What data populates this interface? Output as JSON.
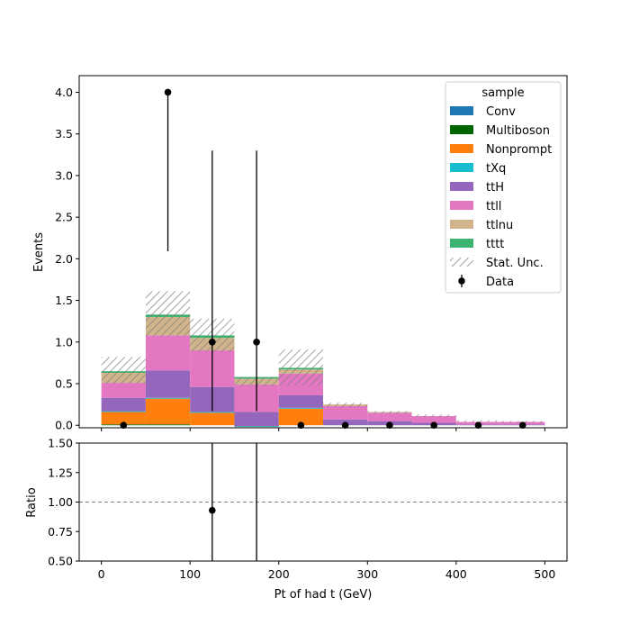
{
  "chart_data": [
    {
      "type": "bar",
      "stacked": true,
      "ylabel": "Events",
      "ylim": [
        -0.03,
        4.2
      ],
      "xlim": [
        -25,
        525
      ],
      "bin_edges": [
        0,
        50,
        100,
        150,
        200,
        250,
        300,
        350,
        400,
        450,
        500
      ],
      "yticks": [
        "0.0",
        "0.5",
        "1.0",
        "1.5",
        "2.0",
        "2.5",
        "3.0",
        "3.5",
        "4.0"
      ],
      "ytick_values": [
        0,
        0.5,
        1.0,
        1.5,
        2.0,
        2.5,
        3.0,
        3.5,
        4.0
      ],
      "legend": {
        "title": "sample",
        "placement": "top-right",
        "stat_label": "Stat. Unc.",
        "data_label": "Data"
      },
      "series": [
        {
          "name": "Conv",
          "color": "#1f77b4",
          "values": [
            0,
            0,
            0,
            0,
            0,
            0,
            0,
            0,
            0,
            0
          ]
        },
        {
          "name": "Multiboson",
          "color": "#006400",
          "values": [
            0.01,
            0.01,
            0,
            0,
            0,
            0,
            0,
            0,
            0,
            0
          ]
        },
        {
          "name": "Nonprompt",
          "color": "#ff7f0e",
          "values": [
            0.15,
            0.31,
            0.15,
            -0.02,
            0.2,
            0,
            0,
            0,
            0,
            0
          ]
        },
        {
          "name": "tXq",
          "color": "#17becf",
          "values": [
            0.01,
            0.01,
            0.01,
            0.01,
            0.01,
            0,
            0,
            0,
            0,
            0
          ]
        },
        {
          "name": "ttH",
          "color": "#9467bd",
          "values": [
            0.16,
            0.33,
            0.3,
            0.17,
            0.15,
            0.07,
            0.05,
            0.03,
            0.01,
            0.01
          ]
        },
        {
          "name": "ttll",
          "color": "#e377c2",
          "values": [
            0.18,
            0.42,
            0.44,
            0.33,
            0.26,
            0.16,
            0.1,
            0.08,
            0.03,
            0.03
          ]
        },
        {
          "name": "ttlnu",
          "color": "#d2b48c",
          "values": [
            0.12,
            0.22,
            0.15,
            0.07,
            0.05,
            0.02,
            0.01,
            0,
            0,
            0
          ]
        },
        {
          "name": "tttt",
          "color": "#3cb371",
          "values": [
            0.02,
            0.03,
            0.03,
            0.02,
            0.02,
            0,
            0,
            0,
            0,
            0
          ]
        }
      ],
      "stat_unc": {
        "color": "#7f7f7f",
        "low": [
          0.5,
          1.07,
          0.88,
          0.47,
          0.48,
          0.22,
          0.14,
          0.1,
          0.04,
          0.03
        ],
        "high": [
          0.82,
          1.61,
          1.28,
          0.58,
          0.91,
          0.27,
          0.17,
          0.13,
          0.06,
          0.05
        ]
      },
      "data": {
        "x": [
          25,
          75,
          125,
          175,
          225,
          275,
          325,
          375,
          425,
          475
        ],
        "y": [
          0,
          4,
          1,
          1,
          0,
          0,
          0,
          0,
          0,
          0
        ],
        "err_low": [
          0,
          1.91,
          0.83,
          0.83,
          0,
          0,
          0,
          0,
          0,
          0
        ],
        "err_high": [
          0,
          0,
          2.3,
          2.3,
          0,
          0,
          0,
          0,
          0,
          0
        ]
      }
    },
    {
      "type": "scatter",
      "ylabel": "Ratio",
      "xlabel": "Pt of had t (GeV)",
      "ylim": [
        0.5,
        1.5
      ],
      "xlim": [
        -25,
        525
      ],
      "reference_line": 1.0,
      "xticks": [
        "0",
        "100",
        "200",
        "300",
        "400",
        "500"
      ],
      "xtick_values": [
        0,
        100,
        200,
        300,
        400,
        500
      ],
      "yticks": [
        "0.50",
        "0.75",
        "1.00",
        "1.25",
        "1.50"
      ],
      "ytick_values": [
        0.5,
        0.75,
        1.0,
        1.25,
        1.5
      ],
      "points": {
        "x": [
          125
        ],
        "y": [
          0.93
        ]
      },
      "error_bars": [
        {
          "x": 125,
          "low": 0.5,
          "high": 1.5
        },
        {
          "x": 175,
          "low": 0.5,
          "high": 1.5
        }
      ]
    }
  ]
}
